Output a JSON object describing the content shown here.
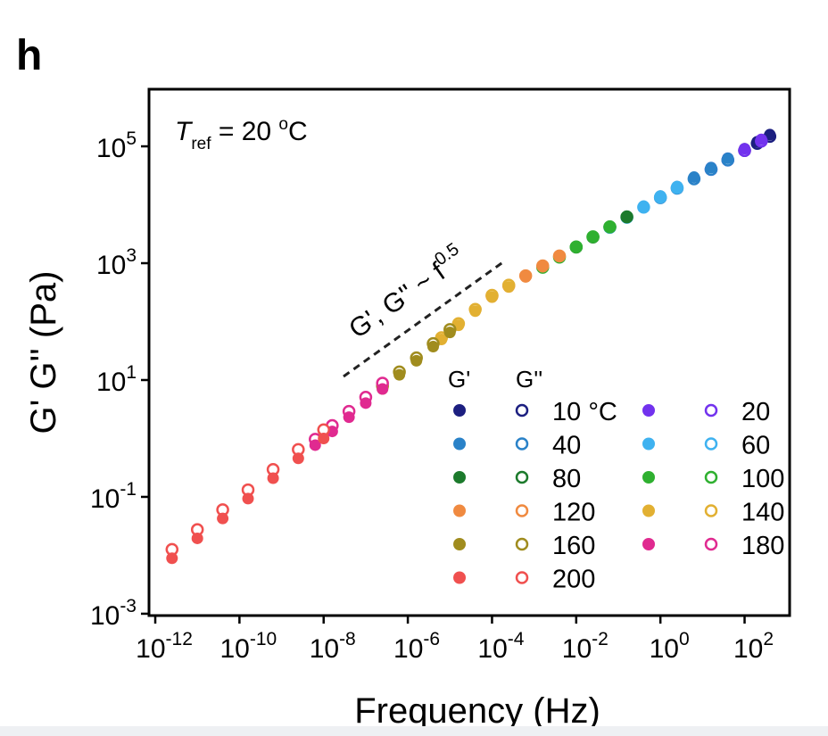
{
  "chart_data": {
    "type": "scatter",
    "panel": "h",
    "xlabel": "Frequency (Hz)",
    "ylabel": "G' G'' (Pa)",
    "xscale": "log",
    "yscale": "log",
    "xlim": [
      7.1e-13,
      1175
    ],
    "ylim": [
      0.00093,
      950000
    ],
    "xticks": [
      {
        "value": 1e-12,
        "label": "10",
        "exp": "-12"
      },
      {
        "value": 1e-10,
        "label": "10",
        "exp": "-10"
      },
      {
        "value": 1e-08,
        "label": "10",
        "exp": "-8"
      },
      {
        "value": 1e-06,
        "label": "10",
        "exp": "-6"
      },
      {
        "value": 0.0001,
        "label": "10",
        "exp": "-4"
      },
      {
        "value": 0.01,
        "label": "10",
        "exp": "-2"
      },
      {
        "value": 1,
        "label": "10",
        "exp": "0"
      },
      {
        "value": 100,
        "label": "10",
        "exp": "2"
      }
    ],
    "yticks": [
      {
        "value": 0.001,
        "label": "10",
        "exp": "-3"
      },
      {
        "value": 0.1,
        "label": "10",
        "exp": "-1"
      },
      {
        "value": 10,
        "label": "10",
        "exp": "1"
      },
      {
        "value": 1000,
        "label": "10",
        "exp": "3"
      },
      {
        "value": 100000,
        "label": "10",
        "exp": "5"
      }
    ],
    "reference": {
      "T": "T",
      "sub": "ref",
      "text": " = 20 ",
      "sup": "o",
      "unit": "C"
    },
    "slope_label": {
      "text": "G', G'' ~ f",
      "exp": "0.5"
    },
    "legend_headers": [
      "G'",
      "G''"
    ],
    "series": [
      {
        "name": "10 °C",
        "color": "#1c1f80",
        "x": [
          100,
          200,
          398
        ],
        "g1": [
          90800,
          120000,
          158500
        ],
        "g2": [
          84700,
          112000,
          148000
        ]
      },
      {
        "name": "20",
        "color": "#7232ee",
        "x": [
          16,
          40,
          100,
          250
        ],
        "g1": [
          43150,
          62500,
          90800,
          131500
        ],
        "g2": [
          40300,
          58300,
          84700,
          122700
        ]
      },
      {
        "name": "40",
        "color": "#2a82c8",
        "x": [
          1,
          2.5,
          6.3,
          16,
          40
        ],
        "g1": [
          14125,
          20500,
          29700,
          43150,
          62500
        ],
        "g2": [
          13200,
          19200,
          27800,
          40300,
          58300
        ]
      },
      {
        "name": "60",
        "color": "#3fb2f0",
        "x": [
          0.063,
          0.16,
          0.4,
          1,
          2.5
        ],
        "g1": [
          4276,
          6368,
          9484,
          14125,
          20500
        ],
        "g2": [
          4100,
          6100,
          9100,
          13500,
          19600
        ]
      },
      {
        "name": "80",
        "color": "#1c7a2c",
        "x": [
          0.01,
          0.025,
          0.063,
          0.16
        ],
        "g1": [
          1928,
          2871,
          4276,
          6368
        ],
        "g2": [
          1880,
          2800,
          4170,
          6200
        ]
      },
      {
        "name": "100",
        "color": "#2fb030",
        "x": [
          0.0016,
          0.004,
          0.01,
          0.025,
          0.063
        ],
        "g1": [
          869,
          1294,
          1928,
          2871,
          4276
        ],
        "g2": [
          850,
          1270,
          1900,
          2830,
          4200
        ]
      },
      {
        "name": "120",
        "color": "#f08a40",
        "x": [
          0.0001,
          0.00025,
          0.00063,
          0.0016,
          0.004
        ],
        "g1": [
          263,
          392,
          583,
          869,
          1294
        ],
        "g2": [
          275,
          410,
          610,
          900,
          1330
        ]
      },
      {
        "name": "140",
        "color": "#e2b032",
        "x": [
          6.3e-06,
          1.6e-05,
          4e-05,
          0.0001,
          0.00025
        ],
        "g1": [
          49.4,
          86.3,
          151,
          263,
          392
        ],
        "g2": [
          53,
          92.5,
          162,
          282,
          420
        ]
      },
      {
        "name": "160",
        "color": "#a08c1e",
        "x": [
          2.5e-07,
          6.3e-07,
          1.6e-06,
          4e-06,
          1e-05
        ],
        "g1": [
          7.03,
          12.3,
          21.4,
          37.4,
          65.3
        ],
        "g2": [
          7.89,
          13.8,
          24.0,
          42.0,
          73.3
        ]
      },
      {
        "name": "180",
        "color": "#e02a90",
        "x": [
          6.3e-09,
          1.6e-08,
          4e-08,
          1e-07,
          2.5e-07
        ],
        "g1": [
          0.769,
          1.32,
          2.31,
          4.03,
          7.03
        ],
        "g2": [
          0.968,
          1.66,
          2.91,
          5.07,
          8.85
        ]
      },
      {
        "name": "200",
        "color": "#f0504f",
        "x": [
          2.5e-12,
          1e-11,
          4e-11,
          1.6e-10,
          6.3e-10,
          2.5e-09,
          1e-08
        ],
        "g1": [
          0.0089,
          0.0195,
          0.0427,
          0.0933,
          0.209,
          0.457,
          1.0
        ],
        "g2": [
          0.0126,
          0.0275,
          0.0603,
          0.132,
          0.295,
          0.646,
          1.41
        ]
      }
    ]
  }
}
